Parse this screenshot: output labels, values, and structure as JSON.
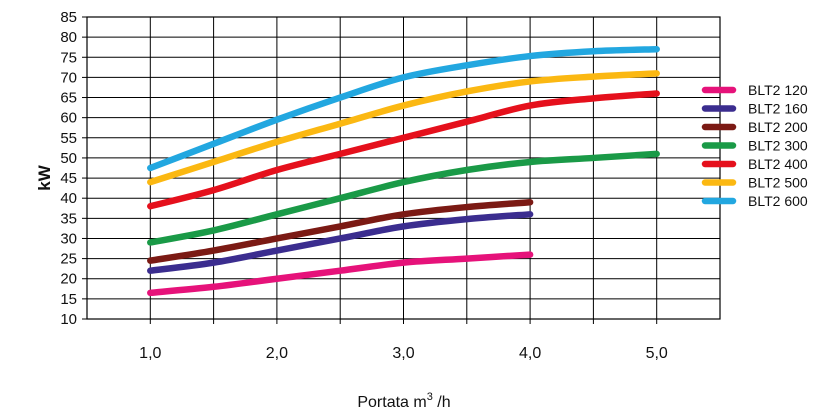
{
  "chart_data": {
    "type": "line",
    "xlabel": "Portata m",
    "xlabel_sup": "3",
    "xlabel_unit": " /h",
    "ylabel": "kW",
    "xlim": [
      0.5,
      5.5
    ],
    "ylim": [
      10,
      85
    ],
    "x_ticks": [
      1.0,
      2.0,
      3.0,
      4.0,
      5.0
    ],
    "x_tick_labels": [
      "1,0",
      "2,0",
      "3,0",
      "4,0",
      "5,0"
    ],
    "y_ticks": [
      10,
      15,
      20,
      25,
      30,
      35,
      40,
      45,
      50,
      55,
      60,
      65,
      70,
      75,
      80,
      85
    ],
    "y_tick_labels": [
      "10",
      "15",
      "20",
      "25",
      "30",
      "35",
      "40",
      "45",
      "50",
      "55",
      "60",
      "65",
      "70",
      "75",
      "80",
      "85"
    ],
    "grid": true,
    "legend_position": "right",
    "series": [
      {
        "name": "BLT2 120",
        "color": "#e6127a",
        "x": [
          1.0,
          1.5,
          2.0,
          2.5,
          3.0,
          3.5,
          4.0
        ],
        "y": [
          16.5,
          18,
          20,
          22,
          24,
          25,
          26
        ]
      },
      {
        "name": "BLT2 160",
        "color": "#3b2d8f",
        "x": [
          1.0,
          1.5,
          2.0,
          2.5,
          3.0,
          3.5,
          4.0
        ],
        "y": [
          22,
          24,
          27,
          30,
          33,
          34.8,
          36
        ]
      },
      {
        "name": "BLT2 200",
        "color": "#7b1a14",
        "x": [
          1.0,
          1.5,
          2.0,
          2.5,
          3.0,
          3.5,
          4.0
        ],
        "y": [
          24.5,
          27,
          30,
          33,
          36,
          37.8,
          39
        ]
      },
      {
        "name": "BLT2 300",
        "color": "#1a9a47",
        "x": [
          1.0,
          1.5,
          2.0,
          2.5,
          3.0,
          3.5,
          4.0,
          4.5,
          5.0
        ],
        "y": [
          29,
          32,
          36,
          40,
          44,
          47,
          49,
          50,
          51
        ]
      },
      {
        "name": "BLT2 400",
        "color": "#e5101c",
        "x": [
          1.0,
          1.5,
          2.0,
          2.5,
          3.0,
          3.5,
          4.0,
          4.5,
          5.0
        ],
        "y": [
          38,
          42,
          47,
          51,
          55,
          59,
          63,
          64.8,
          66
        ]
      },
      {
        "name": "BLT2 500",
        "color": "#fbb812",
        "x": [
          1.0,
          1.5,
          2.0,
          2.5,
          3.0,
          3.5,
          4.0,
          4.5,
          5.0
        ],
        "y": [
          44,
          49,
          54,
          58.5,
          63,
          66.5,
          69,
          70.2,
          71
        ]
      },
      {
        "name": "BLT2 600",
        "color": "#22a7e0",
        "x": [
          1.0,
          1.5,
          2.0,
          2.5,
          3.0,
          3.5,
          4.0,
          4.5,
          5.0
        ],
        "y": [
          47.5,
          53.5,
          59.5,
          65,
          70,
          73,
          75.3,
          76.5,
          77
        ]
      }
    ]
  }
}
